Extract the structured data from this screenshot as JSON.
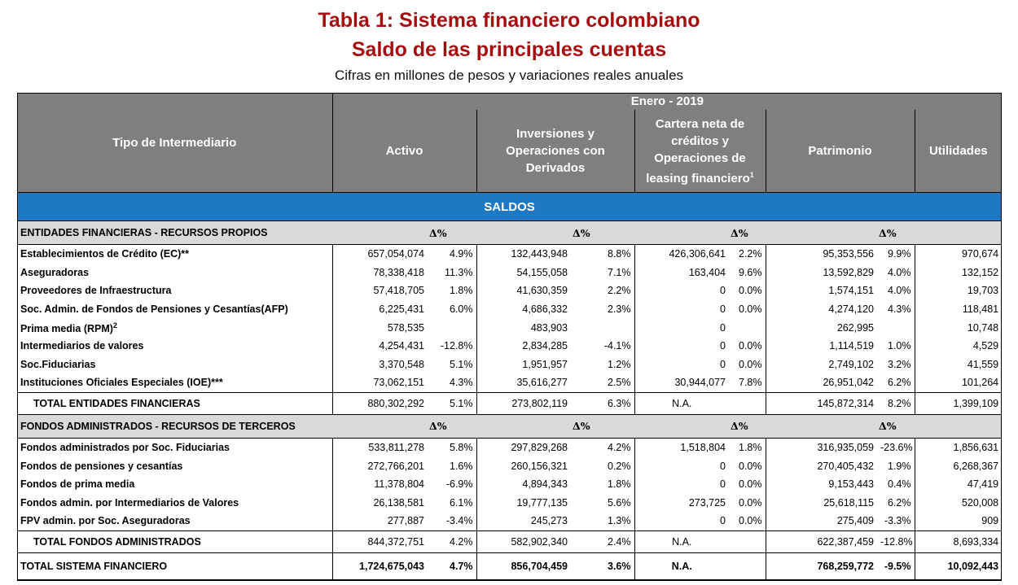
{
  "title_line1": "Tabla 1: Sistema financiero colombiano",
  "title_line2": "Saldo de las principales cuentas",
  "subtitle": "Cifras en millones de pesos y variaciones reales anuales",
  "header": {
    "period": "Enero - 2019",
    "tipo": "Tipo de Intermediario",
    "activo": "Activo",
    "inversiones": "Inversiones y Operaciones con Derivados",
    "cartera": "Cartera neta de créditos y Operaciones de leasing financiero",
    "cartera_sup": "1",
    "patrimonio": "Patrimonio",
    "utilidades": "Utilidades"
  },
  "saldos": "SALDOS",
  "delta_symbol": "Δ%",
  "section1": {
    "label": "ENTIDADES FINANCIERAS - RECURSOS PROPIOS",
    "rows": [
      {
        "name": "Establecimientos de Crédito (EC)**",
        "activo": "657,054,074",
        "activo_d": "4.9%",
        "inv": "132,443,948",
        "inv_d": "8.8%",
        "cart": "426,306,641",
        "cart_d": "2.2%",
        "pat": "95,353,556",
        "pat_d": "9.9%",
        "util": "970,674"
      },
      {
        "name": "Aseguradoras",
        "activo": "78,338,418",
        "activo_d": "11.3%",
        "inv": "54,155,058",
        "inv_d": "7.1%",
        "cart": "163,404",
        "cart_d": "9.6%",
        "pat": "13,592,829",
        "pat_d": "4.0%",
        "util": "132,152"
      },
      {
        "name": "Proveedores de Infraestructura",
        "activo": "57,418,705",
        "activo_d": "1.8%",
        "inv": "41,630,359",
        "inv_d": "2.2%",
        "cart": "0",
        "cart_d": "0.0%",
        "pat": "1,574,151",
        "pat_d": "4.0%",
        "util": "19,703"
      },
      {
        "name": "Soc. Admin. de Fondos de Pensiones y Cesantías(AFP)",
        "activo": "6,225,431",
        "activo_d": "6.0%",
        "inv": "4,686,332",
        "inv_d": "2.3%",
        "cart": "0",
        "cart_d": "0.0%",
        "pat": "4,274,120",
        "pat_d": "4.3%",
        "util": "118,481"
      },
      {
        "name": "Prima media (RPM)",
        "sup": "2",
        "activo": "578,535",
        "activo_d": "",
        "inv": "483,903",
        "inv_d": "",
        "cart": "0",
        "cart_d": "",
        "pat": "262,995",
        "pat_d": "",
        "util": "10,748"
      },
      {
        "name": "Intermediarios de valores",
        "activo": "4,254,431",
        "activo_d": "-12.8%",
        "inv": "2,834,285",
        "inv_d": "-4.1%",
        "cart": "0",
        "cart_d": "0.0%",
        "pat": "1,114,519",
        "pat_d": "1.0%",
        "util": "4,529"
      },
      {
        "name": "Soc.Fiduciarias",
        "activo": "3,370,548",
        "activo_d": "5.1%",
        "inv": "1,951,957",
        "inv_d": "1.2%",
        "cart": "0",
        "cart_d": "0.0%",
        "pat": "2,749,102",
        "pat_d": "3.2%",
        "util": "41,559"
      },
      {
        "name": "Instituciones Oficiales Especiales (IOE)***",
        "activo": "73,062,151",
        "activo_d": "4.3%",
        "inv": "35,616,277",
        "inv_d": "2.5%",
        "cart": "30,944,077",
        "cart_d": "7.8%",
        "pat": "26,951,042",
        "pat_d": "6.2%",
        "util": "101,264"
      }
    ],
    "total": {
      "name": "TOTAL ENTIDADES FINANCIERAS",
      "activo": "880,302,292",
      "activo_d": "5.1%",
      "inv": "273,802,119",
      "inv_d": "6.3%",
      "cart": "N.A.",
      "cart_d": "",
      "pat": "145,872,314",
      "pat_d": "8.2%",
      "util": "1,399,109"
    }
  },
  "section2": {
    "label": "FONDOS ADMINISTRADOS - RECURSOS DE TERCEROS",
    "rows": [
      {
        "name": "Fondos administrados por Soc. Fiduciarias",
        "activo": "533,811,278",
        "activo_d": "5.8%",
        "inv": "297,829,268",
        "inv_d": "4.2%",
        "cart": "1,518,804",
        "cart_d": "1.8%",
        "pat": "316,935,059",
        "pat_d": "-23.6%",
        "util": "1,856,631"
      },
      {
        "name": "Fondos de pensiones y cesantías",
        "activo": "272,766,201",
        "activo_d": "1.6%",
        "inv": "260,156,321",
        "inv_d": "0.2%",
        "cart": "0",
        "cart_d": "0.0%",
        "pat": "270,405,432",
        "pat_d": "1.9%",
        "util": "6,268,367"
      },
      {
        "name": "Fondos de prima media",
        "activo": "11,378,804",
        "activo_d": "-6.9%",
        "inv": "4,894,343",
        "inv_d": "1.8%",
        "cart": "0",
        "cart_d": "0.0%",
        "pat": "9,153,443",
        "pat_d": "0.4%",
        "util": "47,419"
      },
      {
        "name": "Fondos admin. por Intermediarios de Valores",
        "activo": "26,138,581",
        "activo_d": "6.1%",
        "inv": "19,777,135",
        "inv_d": "5.6%",
        "cart": "273,725",
        "cart_d": "0.0%",
        "pat": "25,618,115",
        "pat_d": "6.2%",
        "util": "520,008"
      },
      {
        "name": "FPV admin. por Soc. Aseguradoras",
        "activo": "277,887",
        "activo_d": "-3.4%",
        "inv": "245,273",
        "inv_d": "1.3%",
        "cart": "0",
        "cart_d": "0.0%",
        "pat": "275,409",
        "pat_d": "-3.3%",
        "util": "909"
      }
    ],
    "total": {
      "name": "TOTAL FONDOS ADMINISTRADOS",
      "activo": "844,372,751",
      "activo_d": "4.2%",
      "inv": "582,902,340",
      "inv_d": "2.4%",
      "cart": "N.A.",
      "cart_d": "",
      "pat": "622,387,459",
      "pat_d": "-12.8%",
      "util": "8,693,334"
    }
  },
  "grand_total": {
    "name": "TOTAL SISTEMA FINANCIERO",
    "activo": "1,724,675,043",
    "activo_d": "4.7%",
    "inv": "856,704,459",
    "inv_d": "3.6%",
    "cart": "N.A.",
    "cart_d": "",
    "pat": "768,259,772",
    "pat_d": "-9.5%",
    "util": "10,092,443"
  }
}
